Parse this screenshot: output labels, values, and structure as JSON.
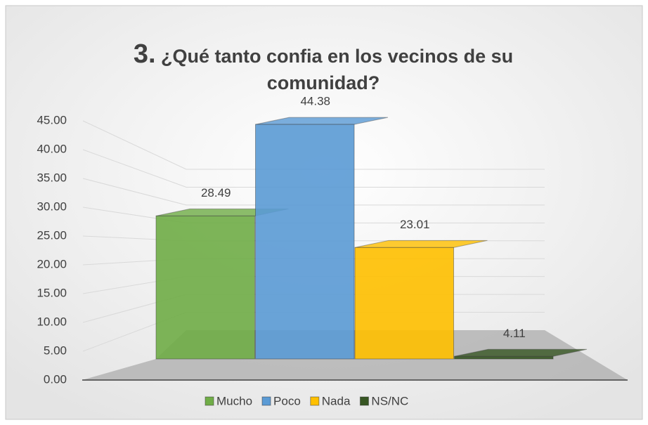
{
  "chart_data": {
    "type": "bar3d",
    "title": {
      "number": "3.",
      "text": "¿Qué tanto confia en los vecinos de su comunidad?"
    },
    "categories": [
      "Mucho",
      "Poco",
      "Nada",
      "NS/NC"
    ],
    "values": [
      28.49,
      44.38,
      23.01,
      4.11
    ],
    "colors": [
      "#70ad47",
      "#5b9bd5",
      "#ffc000",
      "#375623"
    ],
    "ylim": [
      0,
      45
    ],
    "yticks": [
      {
        "value": 0,
        "label": "0.00"
      },
      {
        "value": 5,
        "label": "5.00"
      },
      {
        "value": 10,
        "label": "10.00"
      },
      {
        "value": 15,
        "label": "15.00"
      },
      {
        "value": 20,
        "label": "20.00"
      },
      {
        "value": 25,
        "label": "25.00"
      },
      {
        "value": 30,
        "label": "30.00"
      },
      {
        "value": 35,
        "label": "35.00"
      },
      {
        "value": 40,
        "label": "40.00"
      },
      {
        "value": 45,
        "label": "45.00"
      }
    ],
    "grid": true,
    "legend": "bottom"
  }
}
